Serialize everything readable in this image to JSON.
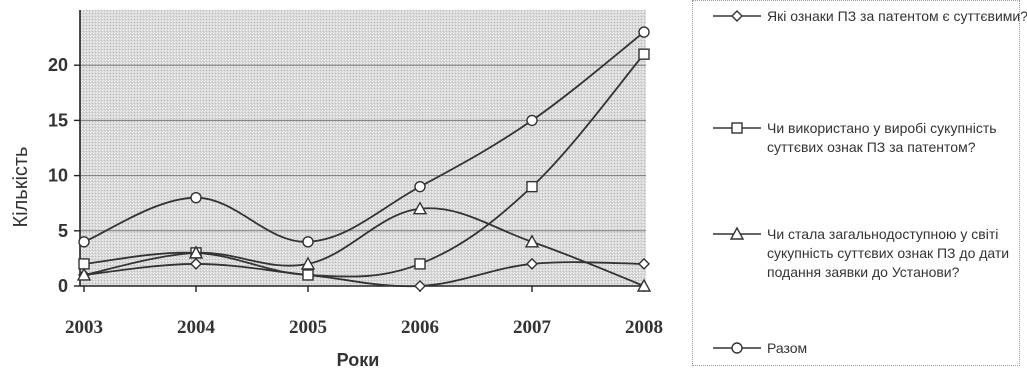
{
  "chart_data": {
    "type": "line",
    "xlabel": "Роки",
    "ylabel": "Кількість",
    "x": [
      "2003",
      "2004",
      "2005",
      "2006",
      "2007",
      "2008"
    ],
    "ylim": [
      0,
      25
    ],
    "yticks": [
      0,
      5,
      10,
      15,
      20
    ],
    "grid": true,
    "legend_position": "right",
    "series": [
      {
        "name": "Які ознаки ПЗ за патентом є суттєвими?",
        "marker": "diamond",
        "values": [
          1,
          2,
          1,
          0,
          2,
          2
        ]
      },
      {
        "name": "Чи використано у виробі сукупність суттєвих ознак ПЗ за патентом?",
        "marker": "square",
        "values": [
          2,
          3,
          1,
          2,
          9,
          21
        ]
      },
      {
        "name": "Чи стала загальнодоступною у світі сукупність суттєвих ознак ПЗ до дати подання заявки до Установи?",
        "marker": "triangle",
        "values": [
          1,
          3,
          2,
          7,
          4,
          0
        ]
      },
      {
        "name": "Разом",
        "marker": "circle",
        "values": [
          4,
          8,
          4,
          9,
          15,
          23
        ]
      }
    ]
  }
}
